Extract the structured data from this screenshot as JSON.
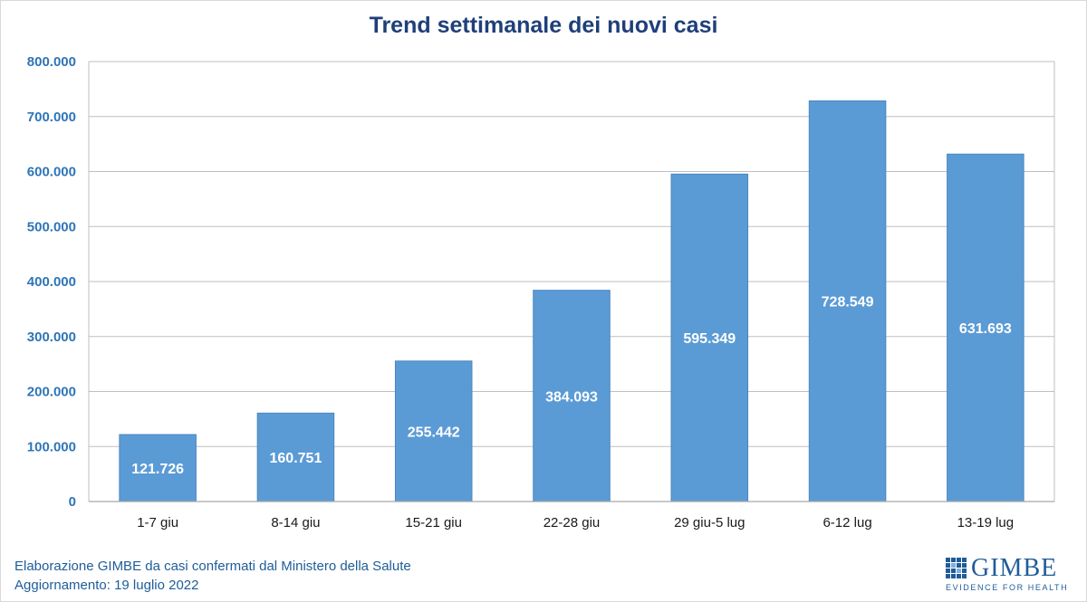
{
  "chart_data": {
    "type": "bar",
    "title": "Trend settimanale dei nuovi casi",
    "categories": [
      "1-7 giu",
      "8-14 giu",
      "15-21 giu",
      "22-28 giu",
      "29 giu-5 lug",
      "6-12 lug",
      "13-19 lug"
    ],
    "values": [
      121726,
      160751,
      255442,
      384093,
      595349,
      728549,
      631693
    ],
    "value_labels": [
      "121.726",
      "160.751",
      "255.442",
      "384.093",
      "595.349",
      "728.549",
      "631.693"
    ],
    "ylim": [
      0,
      800000
    ],
    "y_ticks": [
      0,
      100000,
      200000,
      300000,
      400000,
      500000,
      600000,
      700000,
      800000
    ],
    "y_tick_labels": [
      "0",
      "100.000",
      "200.000",
      "300.000",
      "400.000",
      "500.000",
      "600.000",
      "700.000",
      "800.000"
    ],
    "xlabel": "",
    "ylabel": "",
    "grid": true,
    "colors": {
      "bar": "#5b9bd5",
      "bar_border": "#4a86c0",
      "title": "#1f3f7a",
      "axis_text": "#2e75b6",
      "grid": "#bfbfbf",
      "value_label": "#ffffff"
    }
  },
  "footer": {
    "line1": "Elaborazione GIMBE da casi confermati dal Ministero della Salute",
    "line2": "Aggiornamento: 19 luglio 2022"
  },
  "logo": {
    "name": "GIMBE",
    "tagline": "EVIDENCE FOR HEALTH"
  }
}
